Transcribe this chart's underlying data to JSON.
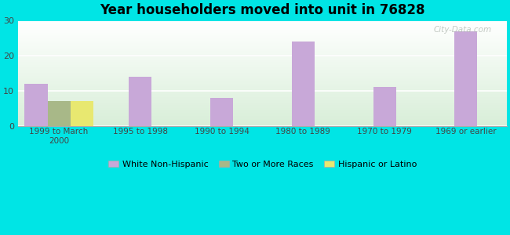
{
  "title": "Year householders moved into unit in 76828",
  "background_color": "#00e5e5",
  "categories": [
    "1999 to March\n2000",
    "1995 to 1998",
    "1990 to 1994",
    "1980 to 1989",
    "1970 to 1979",
    "1969 or earlier"
  ],
  "series": [
    {
      "name": "White Non-Hispanic",
      "color": "#c8a8d8",
      "values": [
        12,
        14,
        8,
        24,
        11,
        27
      ]
    },
    {
      "name": "Two or More Races",
      "color": "#a8b888",
      "values": [
        7,
        0,
        0,
        0,
        0,
        0
      ]
    },
    {
      "name": "Hispanic or Latino",
      "color": "#e8e870",
      "values": [
        7,
        0,
        0,
        0,
        0,
        0
      ]
    }
  ],
  "ylim": [
    0,
    30
  ],
  "yticks": [
    0,
    10,
    20,
    30
  ],
  "bar_width": 0.28,
  "watermark": "City-Data.com",
  "plot_bg_top": "#f0f8f0",
  "plot_bg_bottom": "#d8eed8",
  "grid_color": "#c8e0c8",
  "spine_color": "#aaaaaa"
}
